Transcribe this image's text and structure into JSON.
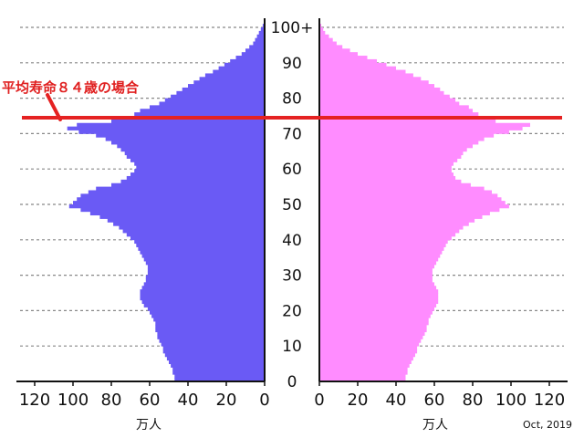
{
  "chart_data": {
    "type": "population-pyramid",
    "date": "Oct, 2019",
    "unit": "万人",
    "left_axis_ticks": [
      "120",
      "100",
      "80",
      "60",
      "40",
      "20",
      "0"
    ],
    "right_axis_ticks": [
      "0",
      "20",
      "40",
      "60",
      "80",
      "100",
      "120"
    ],
    "age_ticks": [
      "0",
      "10",
      "20",
      "30",
      "40",
      "50",
      "60",
      "70",
      "80",
      "90",
      "100+"
    ],
    "xlim": [
      0,
      120
    ],
    "colors": {
      "male": "#6a5af5",
      "female": "#ff8cff",
      "annotation": "#e52222",
      "gridline": "#888888"
    },
    "annotation": {
      "text": "平均寿命８４歳の場合",
      "age": 75
    },
    "male": [
      47,
      47,
      48,
      48,
      49,
      50,
      51,
      52,
      53,
      53,
      54,
      55,
      56,
      56,
      57,
      57,
      57,
      58,
      59,
      60,
      61,
      63,
      64,
      65,
      65,
      65,
      64,
      63,
      62,
      62,
      61,
      61,
      61,
      62,
      63,
      64,
      65,
      66,
      67,
      68,
      70,
      72,
      74,
      76,
      79,
      82,
      86,
      91,
      96,
      102,
      100,
      98,
      96,
      92,
      88,
      80,
      75,
      72,
      70,
      68,
      67,
      68,
      70,
      72,
      73,
      75,
      77,
      80,
      83,
      88,
      97,
      103,
      98,
      80,
      70,
      68,
      65,
      60,
      55,
      52,
      49,
      46,
      43,
      40,
      37,
      34,
      31,
      27,
      24,
      21,
      18,
      15,
      12,
      10,
      8,
      6,
      5,
      4,
      3,
      2,
      1
    ],
    "female": [
      45,
      45,
      46,
      46,
      47,
      48,
      49,
      50,
      51,
      51,
      52,
      53,
      54,
      55,
      56,
      56,
      57,
      57,
      58,
      59,
      60,
      61,
      62,
      62,
      62,
      62,
      61,
      60,
      59,
      59,
      59,
      59,
      60,
      61,
      62,
      63,
      64,
      65,
      66,
      67,
      69,
      71,
      73,
      75,
      78,
      81,
      85,
      89,
      94,
      99,
      97,
      95,
      93,
      90,
      86,
      79,
      74,
      71,
      70,
      69,
      69,
      70,
      72,
      74,
      75,
      77,
      80,
      83,
      86,
      91,
      99,
      106,
      110,
      92,
      84,
      83,
      80,
      78,
      73,
      71,
      68,
      65,
      63,
      60,
      57,
      53,
      49,
      45,
      40,
      35,
      30,
      25,
      20,
      16,
      12,
      9,
      7,
      5,
      3,
      2,
      1
    ]
  }
}
